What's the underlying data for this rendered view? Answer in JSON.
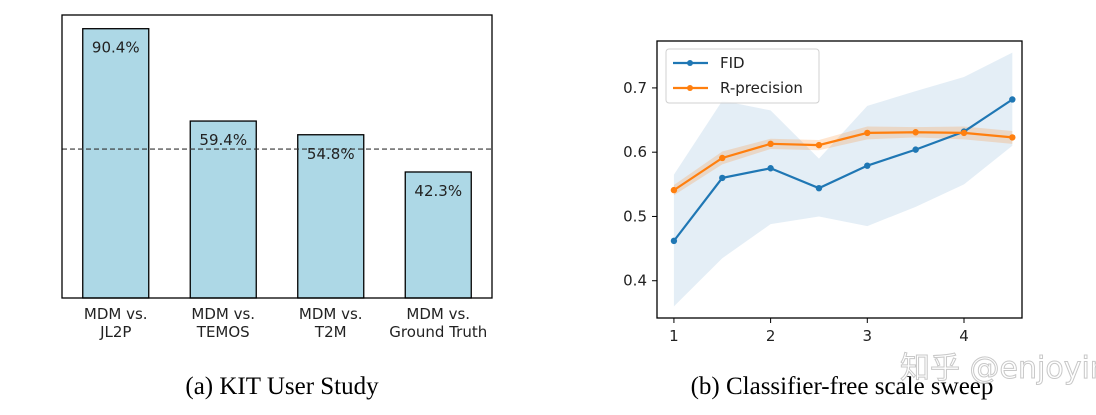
{
  "chart_data": [
    {
      "type": "bar",
      "title": "(a) KIT User Study",
      "categories": [
        "MDM vs.\nJL2P",
        "MDM vs.\nTEMOS",
        "MDM vs.\nT2M",
        "MDM vs.\nGround Truth"
      ],
      "values": [
        90.4,
        59.4,
        54.8,
        42.3
      ],
      "data_labels": [
        "90.4%",
        "59.4%",
        "54.8%",
        "42.3%"
      ],
      "reference_line": 50,
      "ylim": [
        0,
        95
      ],
      "bar_color": "#add8e6",
      "xlabel": "",
      "ylabel": ""
    },
    {
      "type": "line",
      "title": "(b) Classifier-free scale sweep",
      "x": [
        1,
        1.5,
        2,
        2.5,
        3,
        3.5,
        4,
        4.5
      ],
      "xticks": [
        1,
        2,
        3,
        4
      ],
      "yticks": [
        0.4,
        0.5,
        0.6,
        0.7
      ],
      "xlim": [
        0.825,
        4.6
      ],
      "ylim": [
        0.342,
        0.773
      ],
      "legend_position": "top-left",
      "series": [
        {
          "name": "FID",
          "color": "#1f77b4",
          "values": [
            0.462,
            0.56,
            0.575,
            0.544,
            0.579,
            0.604,
            0.632,
            0.682
          ],
          "band_upper": [
            0.565,
            0.68,
            0.665,
            0.59,
            0.672,
            0.695,
            0.717,
            0.755
          ],
          "band_lower": [
            0.36,
            0.435,
            0.488,
            0.5,
            0.485,
            0.515,
            0.55,
            0.61
          ]
        },
        {
          "name": "R-precision",
          "color": "#ff7f0e",
          "values": [
            0.541,
            0.591,
            0.613,
            0.611,
            0.63,
            0.631,
            0.63,
            0.623
          ],
          "band_upper": [
            0.549,
            0.601,
            0.621,
            0.619,
            0.64,
            0.639,
            0.64,
            0.633
          ],
          "band_lower": [
            0.533,
            0.581,
            0.605,
            0.603,
            0.62,
            0.623,
            0.62,
            0.613
          ]
        }
      ],
      "xlabel": "",
      "ylabel": ""
    }
  ],
  "watermark": "知乎 @enjoying"
}
